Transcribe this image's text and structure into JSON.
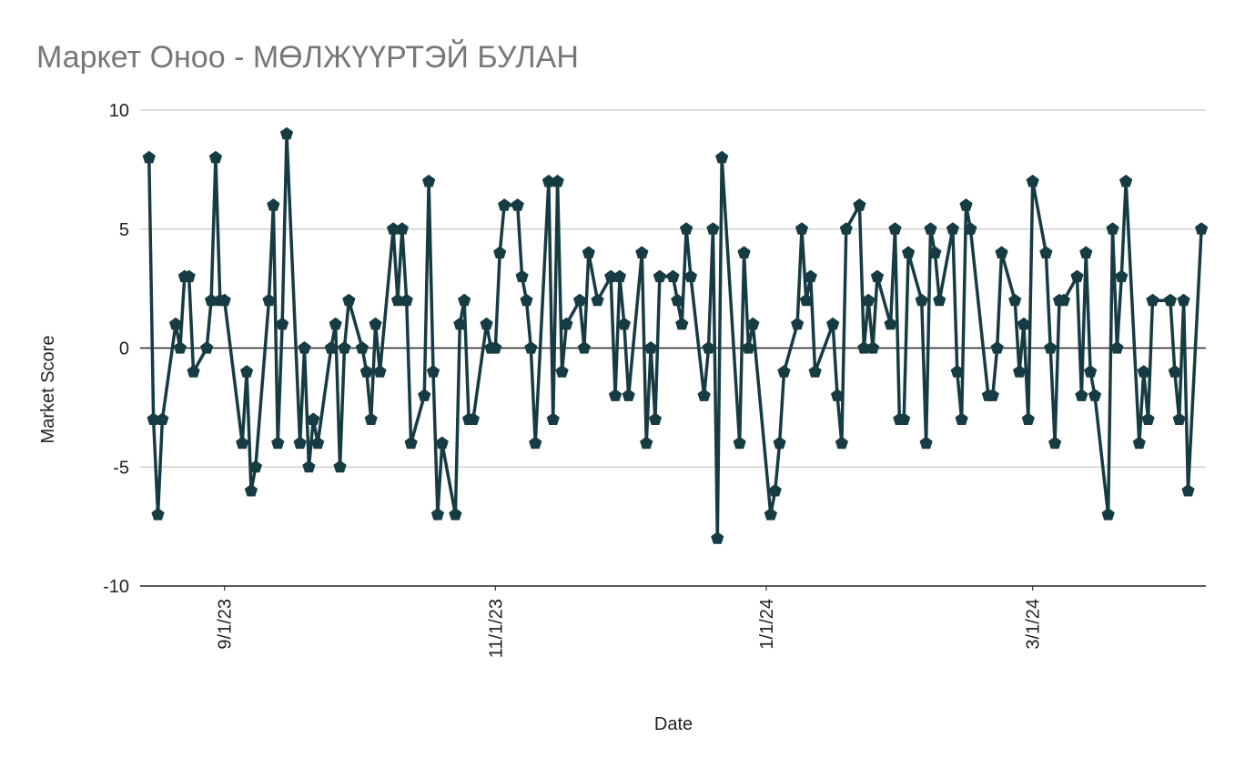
{
  "chart_data": {
    "type": "line",
    "title": "Маркет Оноо - МӨЛЖҮҮРТЭЙ БУЛАН",
    "x_label": "Date",
    "y_label": "Market Score",
    "x": [
      "8/15/23",
      "8/16/23",
      "8/17/23",
      "8/18/23",
      "8/21/23",
      "8/22/23",
      "8/23/23",
      "8/24/23",
      "8/25/23",
      "8/28/23",
      "8/29/23",
      "8/30/23",
      "8/31/23",
      "9/1/23",
      "9/5/23",
      "9/6/23",
      "9/7/23",
      "9/8/23",
      "9/11/23",
      "9/12/23",
      "9/13/23",
      "9/14/23",
      "9/15/23",
      "9/18/23",
      "9/19/23",
      "9/20/23",
      "9/21/23",
      "9/22/23",
      "9/25/23",
      "9/26/23",
      "9/27/23",
      "9/28/23",
      "9/29/23",
      "10/2/23",
      "10/3/23",
      "10/4/23",
      "10/5/23",
      "10/6/23",
      "10/9/23",
      "10/10/23",
      "10/11/23",
      "10/12/23",
      "10/13/23",
      "10/16/23",
      "10/17/23",
      "10/18/23",
      "10/19/23",
      "10/20/23",
      "10/23/23",
      "10/24/23",
      "10/25/23",
      "10/26/23",
      "10/27/23",
      "10/30/23",
      "10/31/23",
      "11/1/23",
      "11/2/23",
      "11/3/23",
      "11/6/23",
      "11/7/23",
      "11/8/23",
      "11/9/23",
      "11/10/23",
      "11/13/23",
      "11/14/23",
      "11/15/23",
      "11/16/23",
      "11/17/23",
      "11/20/23",
      "11/21/23",
      "11/22/23",
      "11/24/23",
      "11/27/23",
      "11/28/23",
      "11/29/23",
      "11/30/23",
      "12/1/23",
      "12/4/23",
      "12/5/23",
      "12/6/23",
      "12/7/23",
      "12/8/23",
      "12/11/23",
      "12/12/23",
      "12/13/23",
      "12/14/23",
      "12/15/23",
      "12/18/23",
      "12/19/23",
      "12/20/23",
      "12/21/23",
      "12/22/23",
      "12/26/23",
      "12/27/23",
      "12/28/23",
      "12/29/23",
      "1/2/24",
      "1/3/24",
      "1/4/24",
      "1/5/24",
      "1/8/24",
      "1/9/24",
      "1/10/24",
      "1/11/24",
      "1/12/24",
      "1/16/24",
      "1/17/24",
      "1/18/24",
      "1/19/24",
      "1/22/24",
      "1/23/24",
      "1/24/24",
      "1/25/24",
      "1/26/24",
      "1/29/24",
      "1/30/24",
      "1/31/24",
      "2/1/24",
      "2/2/24",
      "2/5/24",
      "2/6/24",
      "2/7/24",
      "2/8/24",
      "2/9/24",
      "2/12/24",
      "2/13/24",
      "2/14/24",
      "2/15/24",
      "2/16/24",
      "2/20/24",
      "2/21/24",
      "2/22/24",
      "2/23/24",
      "2/26/24",
      "2/27/24",
      "2/28/24",
      "2/29/24",
      "3/1/24",
      "3/4/24",
      "3/5/24",
      "3/6/24",
      "3/7/24",
      "3/8/24",
      "3/11/24",
      "3/12/24",
      "3/13/24",
      "3/14/24",
      "3/15/24",
      "3/18/24",
      "3/19/24",
      "3/20/24",
      "3/21/24",
      "3/22/24",
      "3/25/24",
      "3/26/24",
      "3/27/24",
      "3/28/24",
      "4/1/24",
      "4/2/24",
      "4/3/24",
      "4/4/24",
      "4/5/24",
      "4/8/24"
    ],
    "values": [
      8,
      -3,
      -7,
      -3,
      1,
      0,
      3,
      3,
      -1,
      0,
      2,
      8,
      2,
      2,
      -4,
      -1,
      -6,
      -5,
      2,
      6,
      -4,
      1,
      9,
      -4,
      0,
      -5,
      -3,
      -4,
      0,
      1,
      -5,
      0,
      2,
      0,
      -1,
      -3,
      1,
      -1,
      5,
      2,
      5,
      2,
      -4,
      -2,
      7,
      -1,
      -7,
      -4,
      -7,
      1,
      2,
      -3,
      -3,
      1,
      0,
      0,
      4,
      6,
      6,
      3,
      2,
      0,
      -4,
      7,
      -3,
      7,
      -1,
      1,
      2,
      0,
      4,
      2,
      3,
      -2,
      3,
      1,
      -2,
      4,
      -4,
      0,
      -3,
      3,
      3,
      2,
      1,
      5,
      3,
      -2,
      0,
      5,
      -8,
      8,
      -4,
      4,
      0,
      1,
      -7,
      -6,
      -4,
      -1,
      1,
      5,
      2,
      3,
      -1,
      1,
      -2,
      -4,
      5,
      6,
      0,
      2,
      0,
      3,
      1,
      5,
      -3,
      -3,
      4,
      2,
      -4,
      5,
      4,
      2,
      5,
      -1,
      -3,
      6,
      5,
      -2,
      -2,
      0,
      4,
      2,
      -1,
      1,
      -3,
      7,
      4,
      0,
      -4,
      2,
      2,
      3,
      -2,
      4,
      -1,
      -2,
      -7,
      5,
      0,
      3,
      7,
      -4,
      -1,
      -3,
      2,
      2,
      -1,
      -3,
      2,
      -6,
      5
    ],
    "color": "#173b42",
    "xlim": [
      "8/13/23",
      "4/9/24"
    ],
    "xticks": [
      "9/1/23",
      "11/1/23",
      "1/1/24",
      "3/1/24"
    ],
    "ylim": [
      -10,
      10
    ],
    "yticks": [
      -10,
      -5,
      0,
      5,
      10
    ],
    "grid": true
  }
}
